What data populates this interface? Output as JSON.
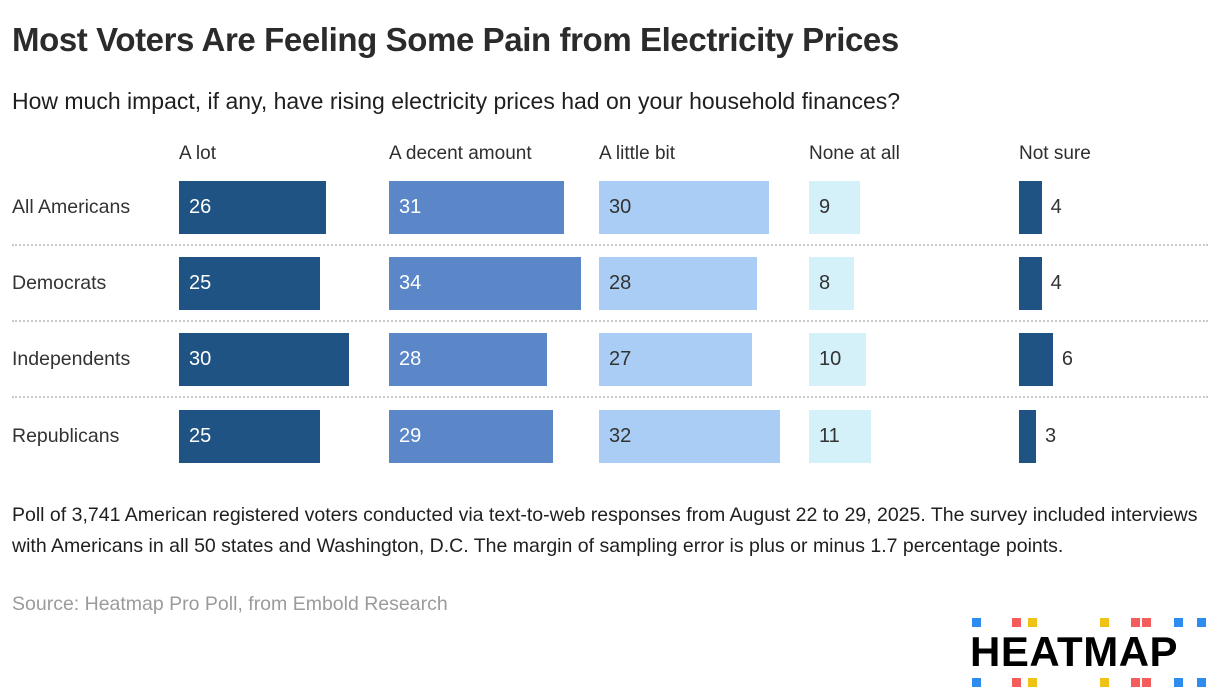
{
  "page": {
    "background": "#ffffff"
  },
  "header": {
    "title": "Most Voters Are Feeling Some Pain from Electricity Prices",
    "subtitle": "How much impact, if any, have rising electricity prices had on your household finances?"
  },
  "chart_data": {
    "type": "bar",
    "layout": "horizontal grouped bars in table columns, one column per response option",
    "column_headers": [
      "A lot",
      "A decent amount",
      "A little bit",
      "None at all",
      "Not sure"
    ],
    "categories": [
      "All Americans",
      "Democrats",
      "Independents",
      "Republicans"
    ],
    "series": [
      {
        "name": "All Americans",
        "values": [
          26,
          31,
          30,
          9,
          4
        ]
      },
      {
        "name": "Democrats",
        "values": [
          25,
          34,
          28,
          8,
          4
        ]
      },
      {
        "name": "Independents",
        "values": [
          30,
          28,
          27,
          10,
          6
        ]
      },
      {
        "name": "Republicans",
        "values": [
          25,
          29,
          32,
          11,
          3
        ]
      }
    ],
    "unit": "percent",
    "value_labels_visible": true,
    "column_colors": [
      "#1f5384",
      "#5b86c8",
      "#a9cdf4",
      "#d4f0f9",
      "#1f5384"
    ],
    "row_separator": "dotted light-gray line between category rows",
    "axes": "none (values labeled directly on bars)"
  },
  "footer": {
    "methodology": "Poll of 3,741 American registered voters conducted via text-to-web responses from August 22 to 29, 2025. The survey included interviews with Americans in all 50 states and Washington, D.C. The margin of sampling error is plus or minus 1.7 percentage points.",
    "source": "Source: Heatmap Pro Poll, from Embold Research"
  },
  "logo": {
    "text": "HEATMAP",
    "square_colors": [
      "blue",
      "red",
      "yellow",
      "yellow",
      "red",
      "red",
      "blue",
      "blue"
    ],
    "palette": {
      "blue": "#2d8cf0",
      "red": "#f55c5c",
      "yellow": "#eec315",
      "text": "#000000"
    }
  }
}
